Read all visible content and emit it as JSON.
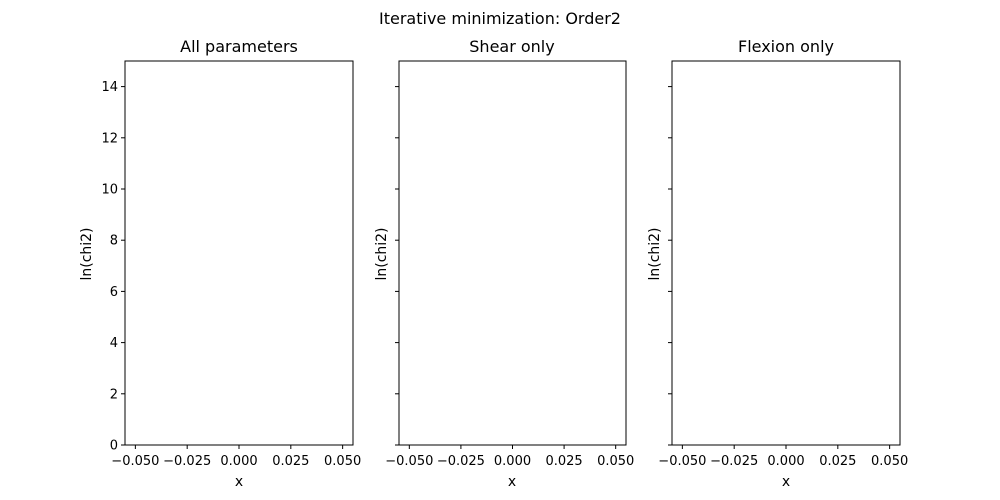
{
  "figure": {
    "suptitle": "Iterative minimization: Order2"
  },
  "chart_data": [
    {
      "type": "line",
      "title": "All parameters",
      "xlabel": "x",
      "ylabel": "ln(chi2)",
      "xlim": [
        -0.055,
        0.055
      ],
      "ylim": [
        0,
        15
      ],
      "xticks": [
        -0.05,
        -0.025,
        0.0,
        0.025,
        0.05
      ],
      "xtick_labels": [
        "−0.050",
        "−0.025",
        "0.000",
        "0.025",
        "0.050"
      ],
      "yticks": [
        0,
        2,
        4,
        6,
        8,
        10,
        12,
        14
      ],
      "ytick_labels": [
        "0",
        "2",
        "4",
        "6",
        "8",
        "10",
        "12",
        "14"
      ],
      "show_ytick_labels": true,
      "grid": false,
      "series": []
    },
    {
      "type": "line",
      "title": "Shear only",
      "xlabel": "x",
      "ylabel": "ln(chi2)",
      "xlim": [
        -0.055,
        0.055
      ],
      "ylim": [
        0,
        15
      ],
      "xticks": [
        -0.05,
        -0.025,
        0.0,
        0.025,
        0.05
      ],
      "xtick_labels": [
        "−0.050",
        "−0.025",
        "0.000",
        "0.025",
        "0.050"
      ],
      "yticks": [
        0,
        2,
        4,
        6,
        8,
        10,
        12,
        14
      ],
      "ytick_labels": [],
      "show_ytick_labels": false,
      "grid": false,
      "series": []
    },
    {
      "type": "line",
      "title": "Flexion only",
      "xlabel": "x",
      "ylabel": "ln(chi2)",
      "xlim": [
        -0.055,
        0.055
      ],
      "ylim": [
        0,
        15
      ],
      "xticks": [
        -0.05,
        -0.025,
        0.0,
        0.025,
        0.05
      ],
      "xtick_labels": [
        "−0.050",
        "−0.025",
        "0.000",
        "0.025",
        "0.050"
      ],
      "yticks": [
        0,
        2,
        4,
        6,
        8,
        10,
        12,
        14
      ],
      "ytick_labels": [],
      "show_ytick_labels": false,
      "grid": false,
      "series": []
    }
  ]
}
